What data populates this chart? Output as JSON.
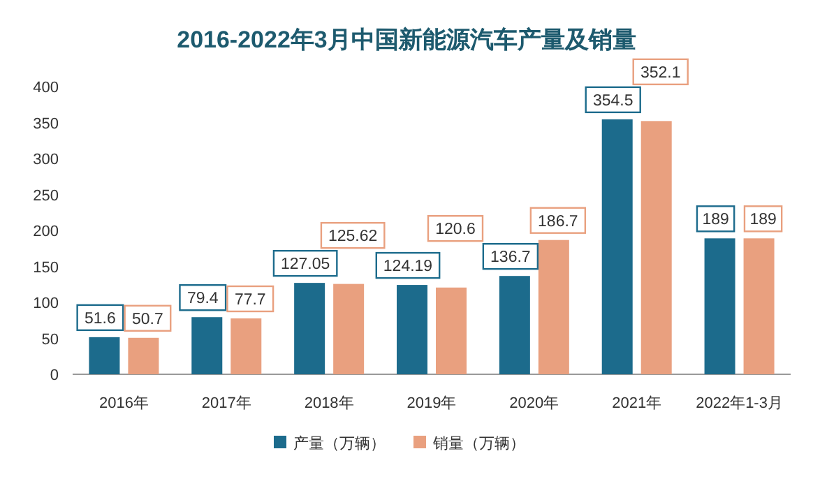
{
  "chart_data": {
    "type": "bar",
    "title": "2016-2022年3月中国新能源汽车产量及销量",
    "categories": [
      "2016年",
      "2017年",
      "2018年",
      "2019年",
      "2020年",
      "2021年",
      "2022年1-3月"
    ],
    "series": [
      {
        "name": "产量（万辆）",
        "color": "#1c6b8c",
        "values": [
          51.6,
          79.4,
          127.05,
          124.19,
          136.7,
          354.5,
          189
        ]
      },
      {
        "name": "销量（万辆）",
        "color": "#e9a07f",
        "values": [
          50.7,
          77.7,
          125.62,
          120.6,
          186.7,
          352.1,
          189
        ]
      }
    ],
    "ylim": [
      0,
      400
    ],
    "yticks": [
      0,
      50,
      100,
      150,
      200,
      250,
      300,
      350,
      400
    ],
    "data_labels": true,
    "legend": "bottom",
    "grid": false
  }
}
